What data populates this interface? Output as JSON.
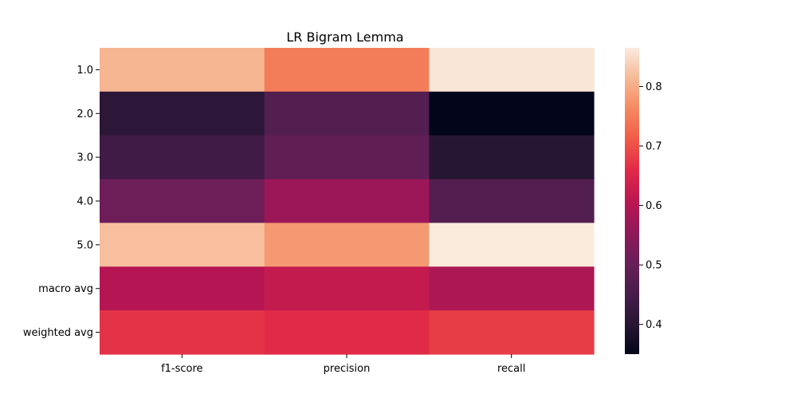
{
  "chart_data": {
    "type": "heatmap",
    "title": "LR Bigram Lemma",
    "xlabel": "",
    "ylabel": "",
    "columns": [
      "f1-score",
      "precision",
      "recall"
    ],
    "rows": [
      "1.0",
      "2.0",
      "3.0",
      "4.0",
      "5.0",
      "macro avg",
      "weighted avg"
    ],
    "values": [
      [
        0.81,
        0.75,
        0.86
      ],
      [
        0.41,
        0.47,
        0.35
      ],
      [
        0.44,
        0.49,
        0.4
      ],
      [
        0.51,
        0.57,
        0.47
      ],
      [
        0.82,
        0.78,
        0.87
      ],
      [
        0.6,
        0.62,
        0.59
      ],
      [
        0.67,
        0.66,
        0.68
      ]
    ],
    "colorbar": {
      "min": 0.35,
      "max": 0.865,
      "ticks": [
        0.4,
        0.5,
        0.6,
        0.7,
        0.8
      ],
      "tick_labels": [
        "0.4",
        "0.5",
        "0.6",
        "0.7",
        "0.8"
      ],
      "colormap": "rocket"
    }
  }
}
